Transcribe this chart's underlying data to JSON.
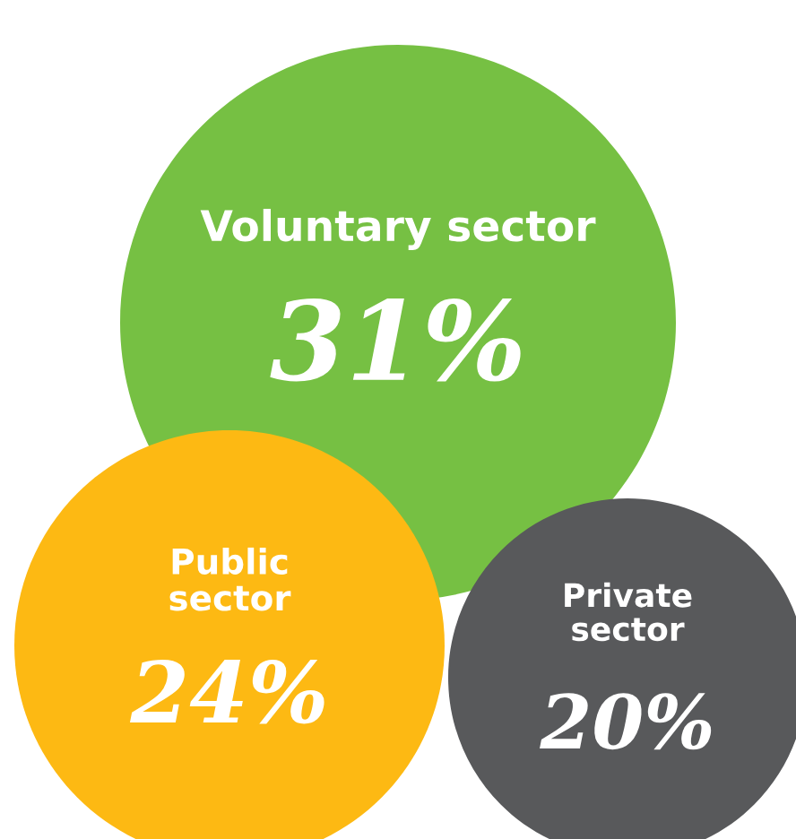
{
  "chart_data": {
    "type": "other",
    "categories": [
      "Voluntary sector",
      "Public\nsector",
      "Private\nsector"
    ],
    "values": [
      31,
      24,
      20
    ],
    "value_labels": [
      "31%",
      "24%",
      "20%"
    ],
    "colors": [
      "#76c043",
      "#fdb913",
      "#58595b"
    ]
  }
}
